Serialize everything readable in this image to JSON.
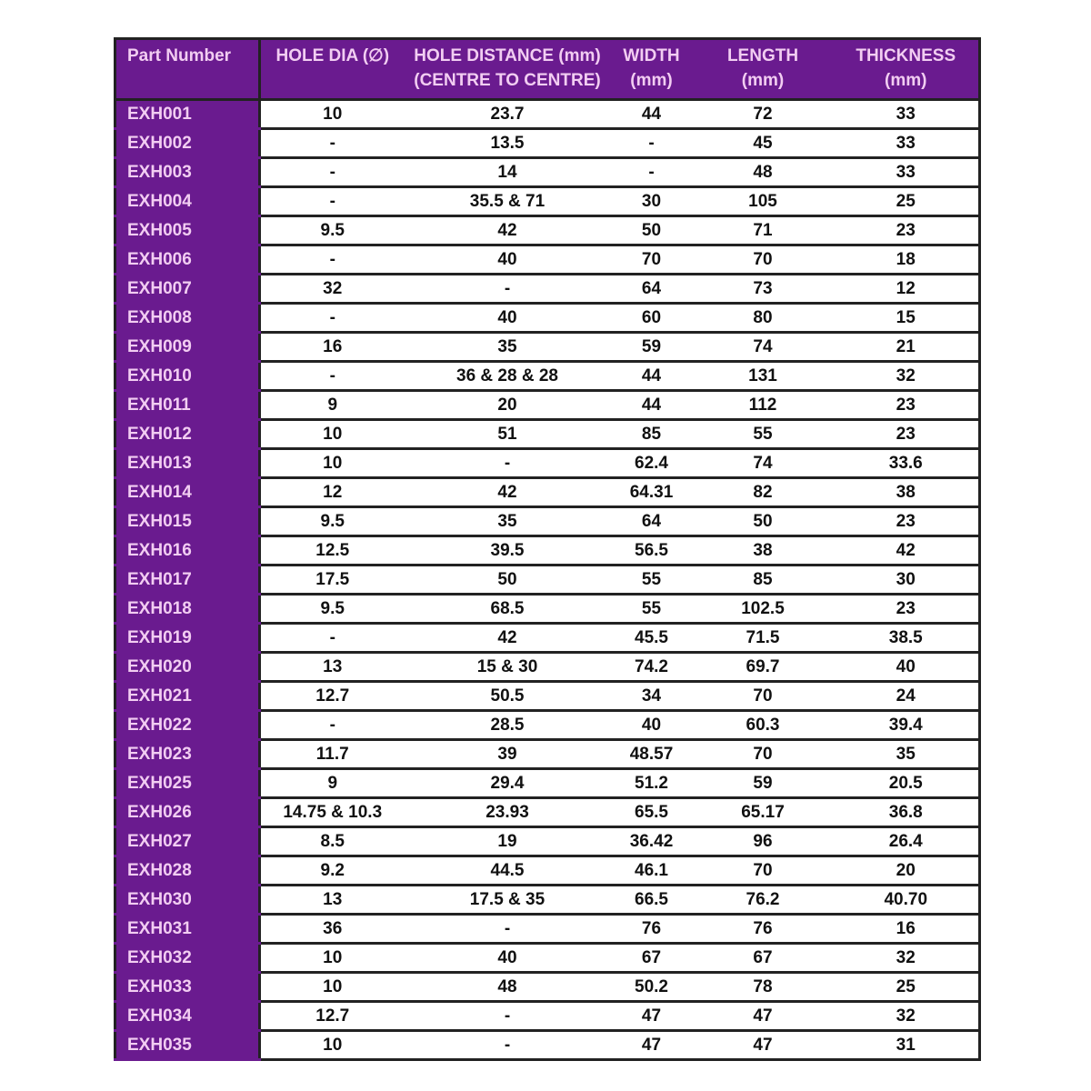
{
  "colors": {
    "header_bg": "#6a1b8f",
    "header_text": "#f2cdf2",
    "border": "#222222"
  },
  "headers": [
    [
      "Part Number",
      ""
    ],
    [
      "HOLE DIA (∅)",
      ""
    ],
    [
      "HOLE DISTANCE (mm)",
      "(CENTRE TO CENTRE)"
    ],
    [
      "WIDTH",
      "(mm)"
    ],
    [
      "LENGTH",
      "(mm)"
    ],
    [
      "THICKNESS",
      "(mm)"
    ]
  ],
  "rows": [
    [
      "EXH001",
      "10",
      "23.7",
      "44",
      "72",
      "33"
    ],
    [
      "EXH002",
      "-",
      "13.5",
      "-",
      "45",
      "33"
    ],
    [
      "EXH003",
      "-",
      "14",
      "-",
      "48",
      "33"
    ],
    [
      "EXH004",
      "-",
      "35.5 & 71",
      "30",
      "105",
      "25"
    ],
    [
      "EXH005",
      "9.5",
      "42",
      "50",
      "71",
      "23"
    ],
    [
      "EXH006",
      "-",
      "40",
      "70",
      "70",
      "18"
    ],
    [
      "EXH007",
      "32",
      "-",
      "64",
      "73",
      "12"
    ],
    [
      "EXH008",
      "-",
      "40",
      "60",
      "80",
      "15"
    ],
    [
      "EXH009",
      "16",
      "35",
      "59",
      "74",
      "21"
    ],
    [
      "EXH010",
      "-",
      "36 & 28 & 28",
      "44",
      "131",
      "32"
    ],
    [
      "EXH011",
      "9",
      "20",
      "44",
      "112",
      "23"
    ],
    [
      "EXH012",
      "10",
      "51",
      "85",
      "55",
      "23"
    ],
    [
      "EXH013",
      "10",
      "-",
      "62.4",
      "74",
      "33.6"
    ],
    [
      "EXH014",
      "12",
      "42",
      "64.31",
      "82",
      "38"
    ],
    [
      "EXH015",
      "9.5",
      "35",
      "64",
      "50",
      "23"
    ],
    [
      "EXH016",
      "12.5",
      "39.5",
      "56.5",
      "38",
      "42"
    ],
    [
      "EXH017",
      "17.5",
      "50",
      "55",
      "85",
      "30"
    ],
    [
      "EXH018",
      "9.5",
      "68.5",
      "55",
      "102.5",
      "23"
    ],
    [
      "EXH019",
      "-",
      "42",
      "45.5",
      "71.5",
      "38.5"
    ],
    [
      "EXH020",
      "13",
      "15 & 30",
      "74.2",
      "69.7",
      "40"
    ],
    [
      "EXH021",
      "12.7",
      "50.5",
      "34",
      "70",
      "24"
    ],
    [
      "EXH022",
      "-",
      "28.5",
      "40",
      "60.3",
      "39.4"
    ],
    [
      "EXH023",
      "11.7",
      "39",
      "48.57",
      "70",
      "35"
    ],
    [
      "EXH025",
      "9",
      "29.4",
      "51.2",
      "59",
      "20.5"
    ],
    [
      "EXH026",
      "14.75 & 10.3",
      "23.93",
      "65.5",
      "65.17",
      "36.8"
    ],
    [
      "EXH027",
      "8.5",
      "19",
      "36.42",
      "96",
      "26.4"
    ],
    [
      "EXH028",
      "9.2",
      "44.5",
      "46.1",
      "70",
      "20"
    ],
    [
      "EXH030",
      "13",
      "17.5 & 35",
      "66.5",
      "76.2",
      "40.70"
    ],
    [
      "EXH031",
      "36",
      "-",
      "76",
      "76",
      "16"
    ],
    [
      "EXH032",
      "10",
      "40",
      "67",
      "67",
      "32"
    ],
    [
      "EXH033",
      "10",
      "48",
      "50.2",
      "78",
      "25"
    ],
    [
      "EXH034",
      "12.7",
      "-",
      "47",
      "47",
      "32"
    ],
    [
      "EXH035",
      "10",
      "-",
      "47",
      "47",
      "31"
    ]
  ]
}
